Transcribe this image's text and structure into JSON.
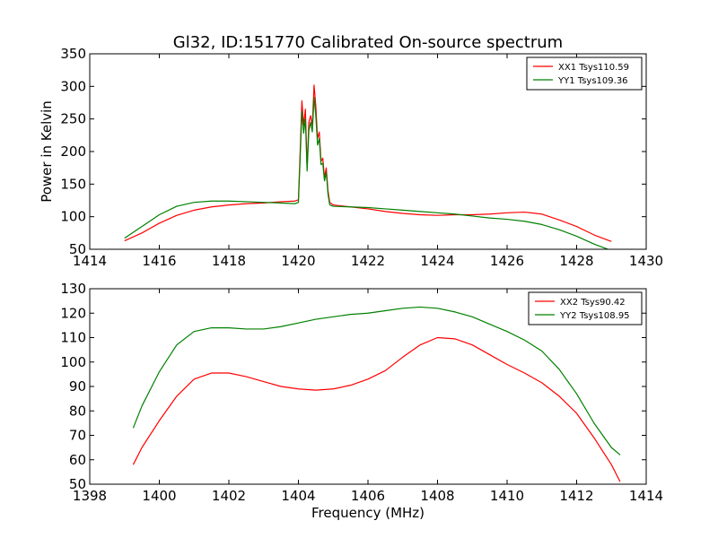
{
  "figure": {
    "title": "Gl32, ID:151770 Calibrated On-source spectrum"
  },
  "chart_data": [
    {
      "type": "line",
      "xlabel": "",
      "ylabel": "Power in Kelvin",
      "xlim": [
        1414,
        1430
      ],
      "ylim": [
        50,
        350
      ],
      "xticks": [
        1414,
        1416,
        1418,
        1420,
        1422,
        1424,
        1426,
        1428,
        1430
      ],
      "yticks": [
        50,
        100,
        150,
        200,
        250,
        300,
        350
      ],
      "legend_position": "top-right",
      "series": [
        {
          "name": "XX1 Tsys110.59",
          "color": "#ff0000",
          "x": [
            1415.0,
            1415.5,
            1416.0,
            1416.5,
            1417.0,
            1417.5,
            1418.0,
            1418.5,
            1419.0,
            1419.5,
            1419.9,
            1420.0,
            1420.05,
            1420.1,
            1420.15,
            1420.2,
            1420.25,
            1420.3,
            1420.35,
            1420.4,
            1420.45,
            1420.5,
            1420.55,
            1420.6,
            1420.65,
            1420.7,
            1420.75,
            1420.8,
            1420.85,
            1420.9,
            1421.0,
            1421.5,
            1422.0,
            1422.5,
            1423.0,
            1423.5,
            1424.0,
            1424.5,
            1425.0,
            1425.5,
            1426.0,
            1426.5,
            1427.0,
            1427.5,
            1428.0,
            1428.5,
            1429.0
          ],
          "values": [
            63,
            75,
            90,
            102,
            110,
            115,
            118,
            120,
            121,
            123,
            124,
            126,
            200,
            278,
            240,
            265,
            175,
            245,
            255,
            240,
            302,
            270,
            220,
            230,
            185,
            190,
            160,
            175,
            140,
            122,
            118,
            115,
            112,
            108,
            105,
            103,
            102,
            103,
            103,
            104,
            106,
            107,
            104,
            95,
            85,
            72,
            62
          ]
        },
        {
          "name": "YY1 Tsys109.36",
          "color": "#008000",
          "x": [
            1415.0,
            1415.5,
            1416.0,
            1416.5,
            1417.0,
            1417.5,
            1418.0,
            1418.5,
            1419.0,
            1419.5,
            1419.9,
            1420.0,
            1420.05,
            1420.1,
            1420.15,
            1420.2,
            1420.25,
            1420.3,
            1420.35,
            1420.4,
            1420.45,
            1420.5,
            1420.55,
            1420.6,
            1420.65,
            1420.7,
            1420.75,
            1420.8,
            1420.85,
            1420.9,
            1421.0,
            1421.5,
            1422.0,
            1422.5,
            1423.0,
            1423.5,
            1424.0,
            1424.5,
            1425.0,
            1425.5,
            1426.0,
            1426.5,
            1427.0,
            1427.5,
            1428.0,
            1428.5,
            1429.0
          ],
          "values": [
            67,
            85,
            103,
            116,
            122,
            124,
            124,
            123,
            122,
            121,
            120,
            122,
            190,
            262,
            228,
            250,
            170,
            232,
            245,
            230,
            283,
            255,
            210,
            220,
            180,
            182,
            155,
            168,
            135,
            118,
            116,
            115,
            114,
            112,
            110,
            108,
            106,
            104,
            101,
            98,
            96,
            93,
            88,
            80,
            70,
            58,
            48
          ]
        }
      ]
    },
    {
      "type": "line",
      "xlabel": "Frequency (MHz)",
      "ylabel": "",
      "xlim": [
        1398,
        1414
      ],
      "ylim": [
        50,
        130
      ],
      "xticks": [
        1398,
        1400,
        1402,
        1404,
        1406,
        1408,
        1410,
        1412,
        1414
      ],
      "yticks": [
        50,
        60,
        70,
        80,
        90,
        100,
        110,
        120,
        130
      ],
      "legend_position": "top-right",
      "series": [
        {
          "name": "XX2 Tsys90.42",
          "color": "#ff0000",
          "x": [
            1399.25,
            1399.5,
            1400.0,
            1400.5,
            1401.0,
            1401.5,
            1402.0,
            1402.5,
            1403.0,
            1403.5,
            1404.0,
            1404.5,
            1405.0,
            1405.5,
            1406.0,
            1406.5,
            1407.0,
            1407.5,
            1408.0,
            1408.5,
            1409.0,
            1409.5,
            1410.0,
            1410.5,
            1411.0,
            1411.5,
            1412.0,
            1412.5,
            1413.0,
            1413.25
          ],
          "values": [
            58,
            65,
            76,
            86,
            93,
            95.5,
            95.5,
            94,
            92,
            90,
            89,
            88.5,
            89,
            90.5,
            93,
            96.5,
            102,
            107,
            110,
            109.5,
            107,
            103,
            99,
            95.5,
            91.5,
            86,
            79,
            69,
            58,
            51
          ]
        },
        {
          "name": "YY2 Tsys108.95",
          "color": "#008000",
          "x": [
            1399.25,
            1399.5,
            1400.0,
            1400.5,
            1401.0,
            1401.5,
            1402.0,
            1402.5,
            1403.0,
            1403.5,
            1404.0,
            1404.5,
            1405.0,
            1405.5,
            1406.0,
            1406.5,
            1407.0,
            1407.5,
            1408.0,
            1408.5,
            1409.0,
            1409.5,
            1410.0,
            1410.5,
            1411.0,
            1411.5,
            1412.0,
            1412.5,
            1413.0,
            1413.25
          ],
          "values": [
            73,
            82,
            96,
            107,
            112.5,
            114,
            114,
            113.5,
            113.5,
            114.5,
            116,
            117.5,
            118.5,
            119.5,
            120,
            121,
            122,
            122.5,
            122,
            120.5,
            118.5,
            115.5,
            112.5,
            109,
            104.5,
            97,
            87,
            75,
            65,
            62
          ]
        }
      ]
    }
  ]
}
